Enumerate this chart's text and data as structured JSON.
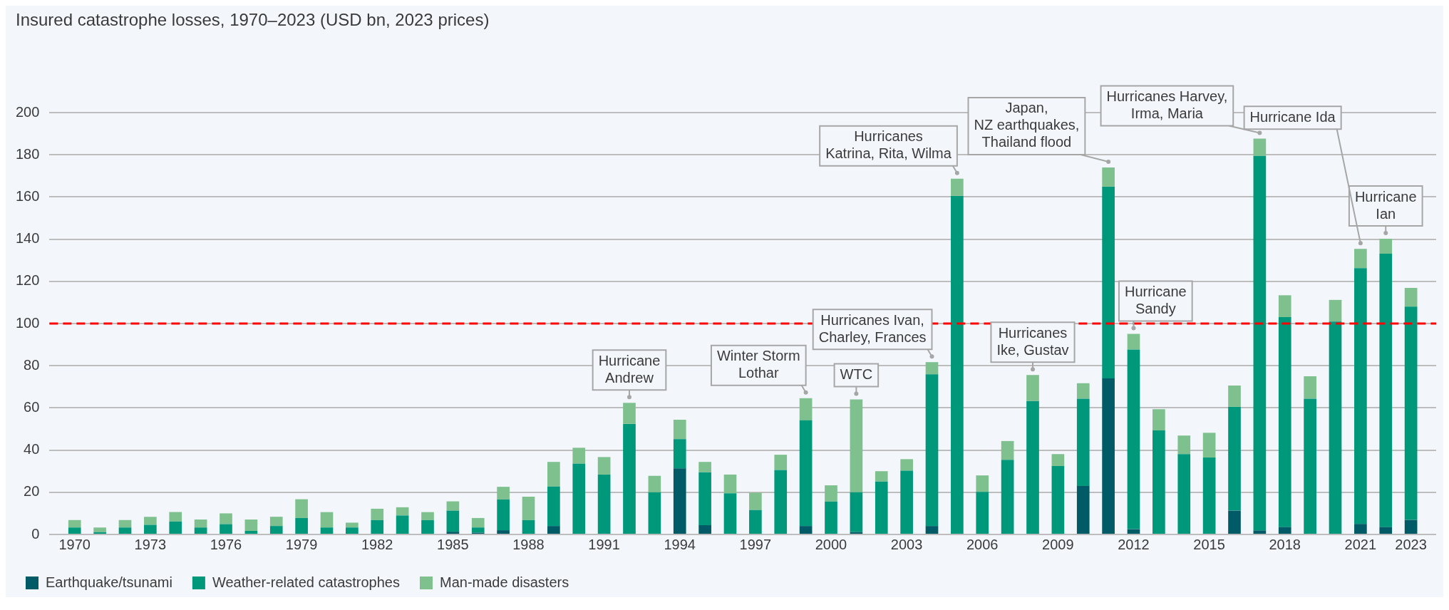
{
  "chart_data": {
    "type": "bar",
    "title": "Insured catastrophe losses, 1970–2023 (USD bn, 2023 prices)",
    "stacked": true,
    "legend": "bottom left",
    "grid": "y",
    "x": [
      1970,
      1971,
      1972,
      1973,
      1974,
      1975,
      1976,
      1977,
      1978,
      1979,
      1980,
      1981,
      1982,
      1983,
      1984,
      1985,
      1986,
      1987,
      1988,
      1989,
      1990,
      1991,
      1992,
      1993,
      1994,
      1995,
      1996,
      1997,
      1998,
      1999,
      2000,
      2001,
      2002,
      2003,
      2004,
      2005,
      2006,
      2007,
      2008,
      2009,
      2010,
      2011,
      2012,
      2013,
      2014,
      2015,
      2016,
      2017,
      2018,
      2019,
      2020,
      2021,
      2022,
      2023
    ],
    "xlim": [
      1969,
      2024
    ],
    "xticks": [
      1970,
      1973,
      1976,
      1979,
      1982,
      1985,
      1988,
      1991,
      1994,
      1997,
      2000,
      2003,
      2006,
      2009,
      2012,
      2015,
      2018,
      2021,
      2023
    ],
    "ylim": [
      0,
      200
    ],
    "yticks": [
      0,
      20,
      40,
      60,
      80,
      100,
      120,
      140,
      160,
      180,
      200
    ],
    "series": [
      {
        "name": "Earthquake/tsunami",
        "color": "#005b66",
        "values": [
          0,
          0,
          0,
          0,
          0,
          0,
          0,
          0,
          0,
          0,
          0,
          0,
          0,
          0,
          0,
          1.3,
          0.8,
          2,
          0,
          4,
          0,
          0,
          0,
          0,
          31.3,
          4.4,
          0,
          0,
          0,
          4,
          0,
          1.1,
          0,
          0,
          4,
          0,
          0,
          0,
          0,
          0,
          23,
          74,
          2.5,
          0,
          0,
          0,
          11.3,
          1.9,
          3.5,
          0,
          0,
          5,
          3.5,
          6.9
        ]
      },
      {
        "name": "Weather-related catastrophes",
        "color": "#00987b",
        "values": [
          3.3,
          1.1,
          3.3,
          4.6,
          6.2,
          3.3,
          4.9,
          1.7,
          4,
          7.8,
          3.3,
          3.3,
          6.8,
          9,
          6.8,
          10,
          2.5,
          14.6,
          6.8,
          18.7,
          33.5,
          28.4,
          52.4,
          20,
          13.9,
          25.1,
          19.5,
          11.6,
          30.6,
          50.1,
          15.6,
          18.9,
          25.1,
          30.2,
          71.9,
          160.5,
          20.2,
          35.4,
          63.3,
          32.4,
          41.4,
          90.9,
          85.2,
          49.3,
          38.1,
          36.5,
          49.2,
          177.6,
          99.5,
          64.4,
          100.9,
          121.3,
          129.6,
          101.1
        ]
      },
      {
        "name": "Man-made disasters",
        "color": "#7fc18e",
        "values": [
          3.5,
          2.2,
          3.5,
          3.8,
          4.4,
          3.8,
          5.1,
          5.4,
          4.4,
          8.9,
          7.3,
          2.3,
          5.4,
          3.9,
          3.8,
          4.4,
          4.5,
          6,
          11.1,
          11.7,
          7.6,
          8.3,
          10,
          7.8,
          9.2,
          4.9,
          8.9,
          8.2,
          7.2,
          10.5,
          7.7,
          44,
          4.9,
          5.5,
          5.8,
          8.2,
          7.8,
          8.9,
          12.3,
          5.7,
          7.3,
          9.1,
          7.4,
          10.1,
          8.8,
          11.7,
          10.1,
          8.2,
          10.4,
          10.6,
          10.3,
          9.1,
          7.1,
          8.9
        ]
      }
    ],
    "ref_lines": [
      {
        "axis": "y",
        "value": 100,
        "color": "#ff0000",
        "line_style": "dashed"
      }
    ],
    "annotations": [
      {
        "text": "Hurricane\nAndrew",
        "x": 1992,
        "y": 62.4
      },
      {
        "text": "Winter Storm\nLothar",
        "x": 1999,
        "y": 64.6
      },
      {
        "text": "WTC",
        "x": 2001,
        "y": 64
      },
      {
        "text": "Hurricanes Ivan,\nCharley, Frances",
        "x": 2004,
        "y": 81.7
      },
      {
        "text": "Hurricanes\nKatrina, Rita, Wilma",
        "x": 2005,
        "y": 168.7
      },
      {
        "text": "Hurricanes\nIke, Gustav",
        "x": 2008,
        "y": 75.6
      },
      {
        "text": "Japan,\nNZ earthquakes,\nThailand flood",
        "x": 2011,
        "y": 174
      },
      {
        "text": "Hurricane\nSandy",
        "x": 2012,
        "y": 95.1
      },
      {
        "text": "Hurricanes Harvey,\nIrma, Maria",
        "x": 2017,
        "y": 187.7
      },
      {
        "text": "Hurricane Ida",
        "x": 2021,
        "y": 135.4
      },
      {
        "text": "Hurricane\nIan",
        "x": 2022,
        "y": 140.2
      }
    ]
  }
}
